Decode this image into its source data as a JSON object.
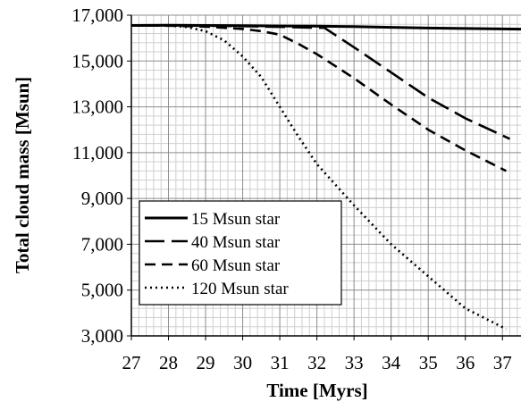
{
  "chart_data": {
    "type": "line",
    "title": "",
    "xlabel": "Time [Myrs]",
    "ylabel": "Total cloud mass [Msun]",
    "xlim": [
      27,
      37.5
    ],
    "ylim": [
      3000,
      17000
    ],
    "x_ticks": [
      27,
      28,
      29,
      30,
      31,
      32,
      33,
      34,
      35,
      36,
      37
    ],
    "y_ticks": [
      3000,
      5000,
      7000,
      9000,
      11000,
      13000,
      15000,
      17000
    ],
    "y_tick_labels": [
      "3,000",
      "5,000",
      "7,000",
      "9,000",
      "11,000",
      "13,000",
      "15,000",
      "17,000"
    ],
    "grid": true,
    "legend_position": "lower-left",
    "series": [
      {
        "name": "15 Msun star",
        "style": "solid",
        "x": [
          27,
          28,
          29,
          30,
          31,
          32,
          33,
          34,
          35,
          36,
          37,
          37.5
        ],
        "y": [
          16550,
          16560,
          16550,
          16540,
          16530,
          16520,
          16500,
          16470,
          16440,
          16420,
          16400,
          16390
        ]
      },
      {
        "name": "40 Msun star",
        "style": "long-dash",
        "x": [
          27,
          28,
          29,
          30,
          31,
          32,
          32.2,
          33,
          34,
          35,
          36,
          37.2
        ],
        "y": [
          16550,
          16560,
          16540,
          16520,
          16490,
          16450,
          16450,
          15600,
          14500,
          13400,
          12500,
          11600
        ]
      },
      {
        "name": "60 Msun star",
        "style": "dash",
        "x": [
          27,
          28,
          29,
          30,
          30.5,
          31,
          31.5,
          32,
          33,
          34,
          35,
          36,
          37.1
        ],
        "y": [
          16550,
          16540,
          16500,
          16400,
          16300,
          16150,
          15750,
          15300,
          14250,
          13100,
          12000,
          11100,
          10200
        ]
      },
      {
        "name": "120 Msun star",
        "style": "dotted",
        "x": [
          27,
          28,
          28.5,
          29,
          29.5,
          30,
          30.5,
          31,
          31.5,
          32,
          33,
          34,
          35,
          36,
          37.1
        ],
        "y": [
          16550,
          16550,
          16480,
          16300,
          15900,
          15200,
          14300,
          13000,
          11700,
          10500,
          8700,
          7000,
          5600,
          4200,
          3300
        ]
      }
    ]
  }
}
